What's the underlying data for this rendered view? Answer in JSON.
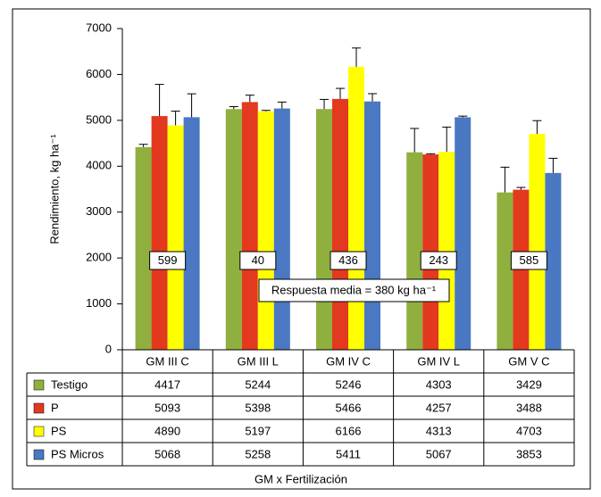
{
  "chart_data": {
    "type": "bar",
    "y_label": "Rendimiento, kg ha⁻¹",
    "x_label": "GM x Fertilización",
    "categories": [
      "GM III C",
      "GM III L",
      "GM IV C",
      "GM IV L",
      "GM V C"
    ],
    "series": [
      {
        "name": "Testigo",
        "color": "#8fb03e",
        "values": [
          4417,
          5244,
          5246,
          4303,
          3429
        ],
        "errors": [
          60,
          55,
          210,
          520,
          550
        ]
      },
      {
        "name": "P",
        "color": "#e2391f",
        "values": [
          5093,
          5398,
          5466,
          4257,
          3488
        ],
        "errors": [
          690,
          150,
          230,
          15,
          50
        ]
      },
      {
        "name": "PS",
        "color": "#ffff00",
        "values": [
          4890,
          5197,
          6166,
          4313,
          4703
        ],
        "errors": [
          310,
          20,
          410,
          540,
          290
        ]
      },
      {
        "name": "PS Micros",
        "color": "#4a78c2",
        "values": [
          5068,
          5258,
          5411,
          5067,
          3853
        ],
        "errors": [
          510,
          140,
          170,
          25,
          320
        ]
      }
    ],
    "group_annotations": [
      599,
      40,
      436,
      243,
      585
    ],
    "mean_response": "Respuesta media = 380 kg ha⁻¹",
    "ylim": [
      0,
      7000
    ],
    "yticks": [
      0,
      1000,
      2000,
      3000,
      4000,
      5000,
      6000,
      7000
    ]
  }
}
